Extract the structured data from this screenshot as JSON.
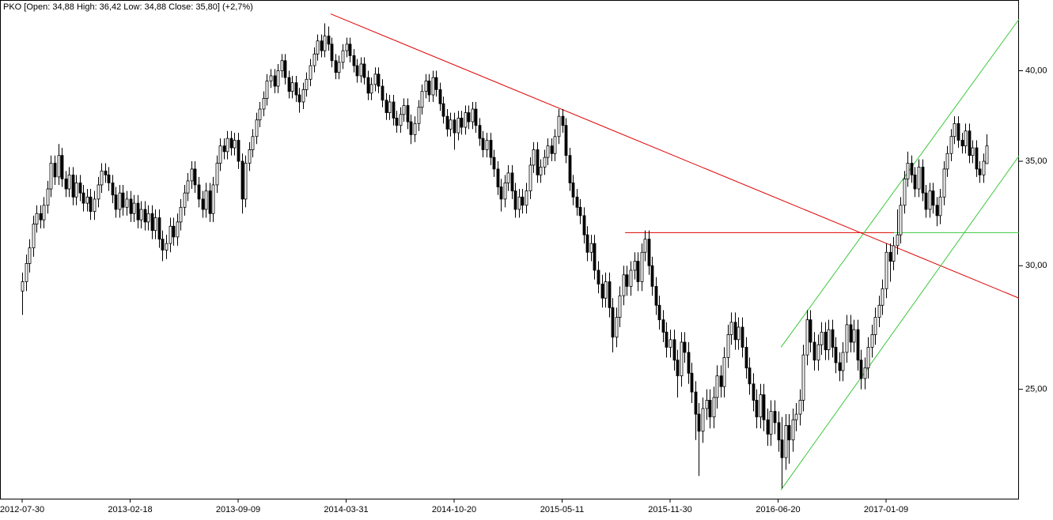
{
  "chart_data": {
    "type": "candlestick",
    "title": "PKO [Open: 34,88  High: 36,42  Low: 34,88  Close: 35,80]  (+2,7%)",
    "up_color": "#ffffff",
    "down_color": "#000000",
    "edge_color": "#000000",
    "log_scale": true,
    "ylim": [
      21.25,
      44.4
    ],
    "yticks": [
      {
        "value": 25,
        "label": "25,00"
      },
      {
        "value": 30,
        "label": "30,00"
      },
      {
        "value": 35,
        "label": "35,00"
      },
      {
        "value": 40,
        "label": "40,00"
      }
    ],
    "categories": [
      "2012-07-30",
      null,
      null,
      null,
      null,
      null,
      null,
      null,
      null,
      null,
      null,
      null,
      null,
      null,
      null,
      null,
      null,
      null,
      null,
      null,
      null,
      null,
      null,
      null,
      null,
      null,
      null,
      null,
      null,
      null,
      "2013-02-18",
      null,
      null,
      null,
      null,
      null,
      null,
      null,
      null,
      null,
      null,
      null,
      null,
      null,
      null,
      null,
      null,
      null,
      null,
      null,
      null,
      null,
      null,
      null,
      null,
      null,
      null,
      null,
      null,
      null,
      "2013-09-09",
      null,
      null,
      null,
      null,
      null,
      null,
      null,
      null,
      null,
      null,
      null,
      null,
      null,
      null,
      null,
      null,
      null,
      null,
      null,
      null,
      null,
      null,
      null,
      null,
      null,
      null,
      null,
      null,
      null,
      "2014-03-31",
      null,
      null,
      null,
      null,
      null,
      null,
      null,
      null,
      null,
      null,
      null,
      null,
      null,
      null,
      null,
      null,
      null,
      null,
      null,
      null,
      null,
      null,
      null,
      null,
      null,
      null,
      null,
      null,
      null,
      "2014-10-20",
      null,
      null,
      null,
      null,
      null,
      null,
      null,
      null,
      null,
      null,
      null,
      null,
      null,
      null,
      null,
      null,
      null,
      null,
      null,
      null,
      null,
      null,
      null,
      null,
      null,
      null,
      null,
      null,
      null,
      "2015-05-11",
      null,
      null,
      null,
      null,
      null,
      null,
      null,
      null,
      null,
      null,
      null,
      null,
      null,
      null,
      null,
      null,
      null,
      null,
      null,
      null,
      null,
      null,
      null,
      null,
      null,
      null,
      null,
      null,
      null,
      "2015-11-30",
      null,
      null,
      null,
      null,
      null,
      null,
      null,
      null,
      null,
      null,
      null,
      null,
      null,
      null,
      null,
      null,
      null,
      null,
      null,
      null,
      null,
      null,
      null,
      null,
      null,
      null,
      null,
      null,
      null,
      "2016-06-20",
      null,
      null,
      null,
      null,
      null,
      null,
      null,
      null,
      null,
      null,
      null,
      null,
      null,
      null,
      null,
      null,
      null,
      null,
      null,
      null,
      null,
      null,
      null,
      null,
      null,
      null,
      null,
      null,
      null,
      "2017-01-09",
      null,
      null,
      null,
      null,
      null,
      null,
      null,
      null,
      null,
      null,
      null,
      null,
      null,
      null,
      null,
      null,
      null,
      null,
      null,
      null,
      null,
      null,
      null,
      null,
      null,
      null,
      null,
      null
    ],
    "open": [
      28.9,
      29.3,
      30.1,
      30.8,
      31.9,
      32.4,
      32.1,
      32.8,
      33.6,
      34.9,
      34.2,
      35.3,
      34.1,
      33.6,
      34.3,
      33.2,
      33.9,
      33.4,
      32.9,
      33.2,
      32.5,
      33.1,
      33.8,
      34.5,
      34.3,
      33.9,
      33.3,
      32.6,
      33.4,
      32.7,
      33.1,
      32.4,
      32.9,
      32.1,
      32.6,
      32.0,
      32.4,
      31.6,
      32.2,
      31.2,
      30.7,
      31.0,
      31.8,
      31.3,
      32.0,
      32.7,
      33.4,
      34.0,
      34.6,
      33.8,
      33.1,
      32.6,
      33.5,
      32.4,
      33.8,
      34.9,
      35.8,
      35.5,
      36.2,
      35.7,
      36.1,
      35.0,
      33.1,
      34.9,
      35.6,
      36.3,
      37.2,
      37.8,
      38.4,
      39.4,
      39.7,
      39.1,
      40.0,
      40.6,
      39.6,
      38.8,
      39.3,
      38.6,
      38.2,
      38.9,
      39.5,
      40.3,
      41.0,
      41.8,
      41.2,
      42.1,
      41.6,
      40.6,
      39.9,
      40.5,
      41.2,
      41.6,
      40.9,
      40.3,
      39.7,
      40.4,
      39.6,
      38.7,
      39.2,
      39.8,
      39.1,
      38.3,
      37.6,
      38.2,
      37.3,
      36.9,
      37.5,
      38.0,
      37.1,
      36.4,
      37.0,
      37.9,
      38.8,
      39.4,
      38.6,
      39.6,
      38.9,
      38.1,
      37.4,
      36.7,
      37.2,
      36.5,
      37.3,
      36.8,
      37.6,
      37.1,
      37.8,
      36.9,
      36.2,
      35.6,
      36.1,
      35.2,
      34.6,
      33.7,
      33.1,
      33.9,
      34.4,
      33.5,
      32.6,
      33.2,
      32.8,
      33.5,
      34.8,
      35.6,
      34.3,
      34.7,
      35.2,
      35.8,
      35.4,
      36.3,
      37.4,
      36.9,
      35.3,
      33.9,
      33.2,
      32.7,
      32.3,
      31.4,
      30.6,
      31.0,
      29.8,
      29.2,
      28.6,
      29.3,
      28.2,
      27.0,
      27.8,
      28.7,
      29.6,
      29.1,
      29.8,
      30.2,
      29.3,
      30.6,
      31.2,
      30.0,
      29.1,
      28.3,
      27.7,
      27.2,
      26.6,
      26.9,
      26.1,
      25.5,
      26.8,
      26.4,
      25.6,
      24.9,
      24.1,
      23.5,
      24.3,
      24.6,
      24.0,
      24.7,
      25.5,
      25.1,
      26.2,
      27.1,
      27.6,
      26.9,
      27.4,
      26.6,
      25.8,
      25.2,
      24.6,
      24.0,
      24.8,
      23.9,
      23.4,
      24.2,
      23.8,
      23.2,
      22.6,
      23.7,
      23.2,
      23.9,
      24.1,
      24.6,
      26.3,
      27.7,
      26.8,
      26.1,
      26.7,
      27.2,
      26.5,
      27.3,
      26.6,
      26.0,
      25.7,
      26.4,
      27.5,
      26.8,
      27.3,
      26.1,
      25.4,
      25.8,
      26.6,
      27.1,
      27.8,
      28.3,
      29.0,
      30.6,
      30.2,
      30.9,
      31.4,
      32.8,
      34.1,
      34.9,
      34.3,
      33.6,
      34.7,
      33.4,
      32.6,
      33.5,
      32.8,
      32.3,
      33.2,
      34.6,
      35.4,
      36.3,
      37.0,
      36.1,
      35.8,
      36.6,
      35.3,
      35.7,
      34.6,
      34.3,
      34.88
    ],
    "high": [
      29.7,
      30.5,
      31.2,
      32.3,
      32.8,
      32.8,
      33.2,
      34.0,
      35.3,
      35.3,
      35.9,
      35.7,
      34.5,
      34.7,
      34.7,
      34.3,
      34.3,
      33.8,
      33.6,
      33.6,
      33.5,
      34.2,
      34.9,
      34.9,
      34.7,
      34.3,
      33.7,
      33.8,
      33.8,
      33.5,
      33.5,
      33.3,
      33.3,
      33.0,
      33.0,
      32.8,
      32.8,
      32.6,
      32.6,
      31.6,
      31.4,
      32.2,
      32.2,
      32.4,
      33.1,
      33.8,
      34.4,
      35.0,
      35.0,
      34.2,
      33.5,
      33.9,
      33.9,
      34.2,
      35.3,
      36.2,
      36.2,
      36.6,
      36.6,
      36.5,
      36.5,
      35.4,
      35.3,
      36.0,
      36.7,
      37.6,
      38.2,
      38.8,
      39.8,
      40.1,
      40.1,
      40.4,
      41.0,
      41.0,
      40.0,
      39.7,
      39.7,
      39.0,
      39.3,
      39.9,
      40.7,
      41.4,
      42.2,
      42.2,
      42.9,
      42.7,
      42.0,
      41.0,
      40.9,
      41.6,
      42.0,
      42.0,
      41.3,
      40.7,
      40.8,
      40.8,
      40.0,
      39.6,
      40.2,
      40.2,
      39.5,
      38.7,
      38.6,
      38.6,
      37.7,
      37.9,
      38.4,
      38.4,
      37.5,
      37.4,
      38.3,
      39.2,
      39.8,
      39.8,
      40.0,
      40.0,
      39.3,
      38.5,
      37.8,
      37.6,
      37.6,
      37.7,
      37.7,
      38.0,
      38.0,
      38.2,
      38.2,
      37.3,
      36.6,
      36.5,
      36.5,
      35.6,
      35.0,
      34.1,
      34.3,
      34.8,
      34.8,
      33.9,
      33.6,
      33.6,
      33.9,
      35.2,
      36.0,
      36.0,
      35.1,
      35.6,
      36.2,
      36.2,
      36.7,
      37.8,
      37.8,
      37.3,
      35.7,
      34.3,
      33.6,
      33.1,
      32.7,
      31.8,
      31.4,
      31.4,
      30.2,
      29.6,
      29.7,
      29.7,
      28.6,
      28.2,
      29.1,
      30.0,
      30.0,
      30.2,
      30.6,
      30.6,
      31.0,
      31.6,
      31.6,
      30.4,
      29.5,
      28.7,
      28.1,
      27.6,
      27.3,
      27.3,
      26.5,
      27.2,
      27.2,
      26.8,
      26.0,
      25.3,
      24.5,
      24.7,
      25.0,
      25.0,
      25.1,
      25.9,
      25.9,
      26.6,
      27.5,
      28.0,
      28.0,
      27.8,
      27.8,
      27.0,
      26.2,
      25.6,
      25.0,
      25.2,
      25.2,
      24.3,
      24.6,
      24.6,
      24.2,
      24.0,
      24.1,
      24.1,
      24.3,
      24.5,
      25.0,
      26.7,
      28.1,
      28.1,
      27.2,
      27.1,
      27.6,
      27.6,
      27.7,
      27.7,
      27.0,
      26.4,
      26.8,
      27.9,
      27.9,
      27.7,
      27.7,
      26.5,
      26.2,
      27.0,
      27.5,
      28.2,
      28.7,
      29.4,
      31.0,
      31.0,
      31.3,
      32.6,
      33.2,
      34.5,
      35.5,
      35.3,
      34.7,
      35.1,
      35.1,
      33.8,
      33.9,
      33.9,
      33.2,
      33.6,
      35.0,
      35.8,
      36.7,
      37.4,
      37.4,
      36.5,
      37.0,
      37.0,
      36.1,
      36.1,
      35.0,
      35.4,
      36.42
    ],
    "low": [
      27.9,
      28.9,
      29.7,
      30.4,
      31.5,
      31.7,
      31.7,
      32.4,
      33.2,
      33.8,
      33.8,
      33.7,
      33.2,
      33.2,
      32.8,
      32.8,
      33.0,
      32.5,
      32.5,
      32.1,
      32.1,
      32.7,
      33.4,
      33.9,
      33.5,
      32.9,
      32.2,
      32.2,
      32.3,
      32.3,
      32.0,
      32.0,
      31.7,
      31.7,
      31.6,
      31.6,
      31.2,
      31.2,
      30.8,
      30.2,
      30.3,
      30.6,
      30.9,
      30.9,
      31.6,
      32.3,
      33.0,
      33.6,
      33.4,
      32.7,
      32.2,
      32.2,
      32.0,
      32.0,
      33.4,
      34.5,
      35.1,
      35.1,
      35.3,
      35.3,
      34.6,
      32.4,
      32.7,
      34.5,
      35.2,
      35.9,
      36.8,
      37.4,
      38.0,
      39.0,
      38.7,
      38.7,
      39.6,
      39.2,
      38.4,
      38.4,
      38.2,
      37.6,
      37.8,
      38.5,
      39.1,
      39.9,
      40.6,
      40.8,
      40.8,
      41.2,
      40.2,
      39.5,
      39.5,
      40.1,
      40.8,
      40.5,
      39.9,
      39.3,
      39.3,
      39.2,
      38.3,
      38.3,
      38.8,
      38.7,
      37.9,
      37.2,
      37.2,
      36.9,
      36.5,
      36.5,
      37.1,
      36.7,
      35.9,
      36.0,
      36.6,
      37.5,
      38.4,
      38.2,
      38.2,
      38.5,
      37.7,
      37.0,
      36.3,
      36.3,
      35.6,
      36.1,
      36.4,
      36.4,
      36.7,
      36.7,
      36.5,
      35.8,
      35.2,
      35.2,
      34.8,
      34.2,
      33.3,
      32.5,
      32.7,
      33.5,
      33.1,
      32.2,
      32.2,
      32.4,
      32.4,
      33.1,
      34.4,
      33.9,
      33.9,
      34.3,
      34.8,
      35.0,
      35.0,
      35.9,
      36.5,
      34.9,
      33.5,
      32.8,
      32.3,
      31.9,
      31.0,
      30.2,
      30.2,
      29.4,
      28.8,
      28.2,
      28.2,
      27.8,
      26.4,
      26.6,
      27.4,
      28.3,
      28.7,
      28.7,
      29.4,
      28.9,
      28.9,
      30.2,
      29.6,
      28.7,
      27.9,
      27.3,
      26.8,
      26.2,
      26.2,
      25.7,
      24.7,
      25.1,
      26.0,
      25.2,
      24.5,
      23.2,
      22.0,
      23.1,
      23.9,
      23.6,
      23.6,
      24.3,
      24.7,
      24.7,
      25.8,
      26.7,
      26.5,
      26.5,
      26.2,
      25.4,
      24.8,
      24.2,
      23.6,
      23.6,
      23.5,
      23.0,
      23.0,
      23.4,
      22.8,
      21.6,
      22.2,
      22.4,
      22.8,
      23.5,
      23.7,
      24.2,
      25.9,
      26.4,
      25.7,
      25.7,
      26.3,
      26.1,
      26.1,
      26.2,
      25.6,
      25.3,
      25.3,
      26.0,
      26.4,
      26.4,
      25.7,
      25.0,
      25.0,
      25.4,
      26.2,
      26.7,
      27.4,
      27.9,
      28.6,
      29.3,
      29.8,
      30.5,
      31.0,
      32.4,
      33.7,
      33.9,
      33.2,
      33.2,
      33.0,
      32.2,
      32.2,
      32.4,
      31.8,
      31.9,
      32.8,
      34.2,
      35.0,
      35.9,
      35.7,
      35.4,
      35.4,
      34.9,
      34.9,
      34.2,
      33.9,
      33.9,
      34.88
    ],
    "close": [
      29.3,
      30.1,
      30.8,
      31.9,
      32.4,
      32.1,
      32.8,
      33.6,
      34.9,
      34.2,
      35.3,
      34.1,
      33.6,
      34.3,
      33.2,
      33.9,
      33.4,
      32.9,
      33.2,
      32.5,
      33.1,
      33.8,
      34.5,
      34.3,
      33.9,
      33.3,
      32.6,
      33.4,
      32.7,
      33.1,
      32.4,
      32.9,
      32.1,
      32.6,
      32.0,
      32.4,
      31.6,
      32.2,
      31.2,
      30.7,
      31.0,
      31.8,
      31.3,
      32.0,
      32.7,
      33.4,
      34.0,
      34.6,
      33.8,
      33.1,
      32.6,
      33.5,
      32.4,
      33.8,
      34.9,
      35.8,
      35.5,
      36.2,
      35.7,
      36.1,
      35.0,
      33.1,
      34.9,
      35.6,
      36.3,
      37.2,
      37.8,
      38.4,
      39.4,
      39.7,
      39.1,
      40.0,
      40.6,
      39.6,
      38.8,
      39.3,
      38.6,
      38.2,
      38.9,
      39.5,
      40.3,
      41.0,
      41.8,
      41.2,
      42.1,
      41.6,
      40.6,
      39.9,
      40.5,
      41.2,
      41.6,
      40.9,
      40.3,
      39.7,
      40.4,
      39.6,
      38.7,
      39.2,
      39.8,
      39.1,
      38.3,
      37.6,
      38.2,
      37.3,
      36.9,
      37.5,
      38.0,
      37.1,
      36.4,
      37.0,
      37.9,
      38.8,
      39.4,
      38.6,
      39.6,
      38.9,
      38.1,
      37.4,
      36.7,
      37.2,
      36.5,
      37.3,
      36.8,
      37.6,
      37.1,
      37.8,
      36.9,
      36.2,
      35.6,
      36.1,
      35.2,
      34.6,
      33.7,
      33.1,
      33.9,
      34.4,
      33.5,
      32.6,
      33.2,
      32.8,
      33.5,
      34.8,
      35.6,
      34.3,
      34.7,
      35.2,
      35.8,
      35.4,
      36.3,
      37.4,
      36.9,
      35.3,
      33.9,
      33.2,
      32.7,
      32.3,
      31.4,
      30.6,
      31.0,
      29.8,
      29.2,
      28.6,
      29.3,
      28.2,
      27.0,
      27.8,
      28.7,
      29.6,
      29.1,
      29.8,
      30.2,
      29.3,
      30.6,
      31.2,
      30.0,
      29.1,
      28.3,
      27.7,
      27.2,
      26.6,
      26.9,
      26.1,
      25.5,
      26.8,
      26.4,
      25.6,
      24.9,
      24.1,
      23.5,
      24.3,
      24.6,
      24.0,
      24.7,
      25.5,
      25.1,
      26.2,
      27.1,
      27.6,
      26.9,
      27.4,
      26.6,
      25.8,
      25.2,
      24.6,
      24.0,
      24.8,
      23.9,
      23.4,
      24.2,
      23.8,
      23.2,
      22.6,
      23.7,
      23.2,
      23.9,
      24.1,
      24.6,
      26.3,
      27.7,
      26.8,
      26.1,
      26.7,
      27.2,
      26.5,
      27.3,
      26.6,
      26.0,
      25.7,
      26.4,
      27.5,
      26.8,
      27.3,
      26.1,
      25.4,
      25.8,
      26.6,
      27.1,
      27.8,
      28.3,
      29.0,
      30.6,
      30.2,
      30.9,
      31.4,
      32.8,
      34.1,
      34.9,
      34.3,
      33.6,
      34.7,
      33.4,
      32.6,
      33.5,
      32.8,
      32.3,
      33.2,
      34.6,
      35.4,
      36.3,
      37.0,
      36.1,
      35.8,
      36.6,
      35.3,
      35.7,
      34.6,
      34.3,
      35.0,
      35.8
    ],
    "trendlines": [
      {
        "color": "#e00000",
        "x": [
          85.7,
          276.9
        ],
        "y": [
          43.5,
          28.6
        ]
      },
      {
        "color": "#e00000",
        "x": [
          167.5,
          242.2
        ],
        "y": [
          31.5,
          31.5
        ]
      },
      {
        "color": "#3cc83c",
        "x": [
          242.2,
          276.9
        ],
        "y": [
          31.5,
          31.5
        ]
      },
      {
        "color": "#3cc83c",
        "x": [
          210.8,
          276.9
        ],
        "y": [
          26.6,
          43.15
        ]
      },
      {
        "color": "#3cc83c",
        "x": [
          210.8,
          276.9
        ],
        "y": [
          21.55,
          35.27
        ]
      }
    ]
  }
}
